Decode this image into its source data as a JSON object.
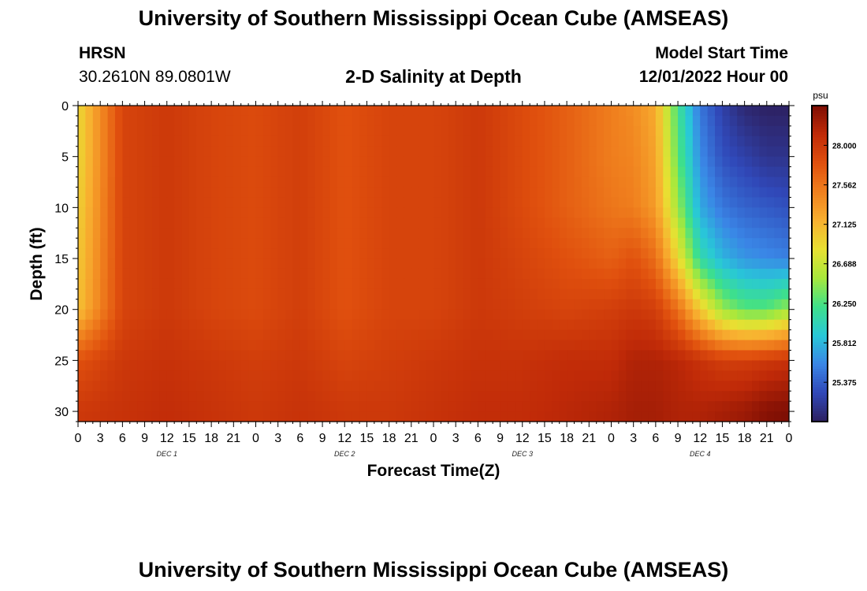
{
  "header": {
    "title": "University of Southern Mississippi Ocean Cube (AMSEAS)",
    "station": "HRSN",
    "coords": "30.2610N  89.0801W",
    "subtitle": "2-D Salinity at Depth",
    "model_start_label": "Model Start Time",
    "model_start_value": "12/01/2022 Hour 00"
  },
  "footer": {
    "title": "University of Southern Mississippi Ocean Cube (AMSEAS)"
  },
  "chart_data": {
    "type": "heatmap",
    "xlabel": "Forecast Time(Z)",
    "ylabel": "Depth (ft)",
    "x_ticks": [
      "0",
      "3",
      "6",
      "9",
      "12",
      "15",
      "18",
      "21",
      "0",
      "3",
      "6",
      "9",
      "12",
      "15",
      "18",
      "21",
      "0",
      "3",
      "6",
      "9",
      "12",
      "15",
      "18",
      "21",
      "0",
      "3",
      "6",
      "9",
      "12",
      "15",
      "18",
      "21",
      "0"
    ],
    "x_range_hours": [
      0,
      96
    ],
    "day_labels": [
      {
        "label": "DEC 1",
        "hour": 12
      },
      {
        "label": "DEC 2",
        "hour": 36
      },
      {
        "label": "DEC 3",
        "hour": 60
      },
      {
        "label": "DEC 4",
        "hour": 84
      }
    ],
    "y_ticks": [
      0,
      5,
      10,
      15,
      20,
      25,
      30
    ],
    "ylim": [
      0,
      31
    ],
    "y_inverted": true,
    "colorbar": {
      "unit": "psu",
      "ticks": [
        "28.000",
        "27.562",
        "27.125",
        "26.688",
        "26.250",
        "25.812",
        "25.375"
      ],
      "tick_values": [
        28.0,
        27.562,
        27.125,
        26.688,
        26.25,
        25.812,
        25.375
      ],
      "range": [
        24.94,
        28.44
      ],
      "colors": [
        "#2d2060",
        "#3048b8",
        "#3a86e6",
        "#28c8d8",
        "#3ee08a",
        "#a8e83c",
        "#e8e032",
        "#f8b030",
        "#f0801e",
        "#e0500e",
        "#c02a08",
        "#7e0e04"
      ]
    },
    "salinity_grid": {
      "hours": [
        0,
        6,
        12,
        18,
        24,
        30,
        36,
        42,
        48,
        54,
        60,
        66,
        72,
        75,
        78,
        81,
        84,
        87,
        90,
        93,
        96
      ],
      "depths_ft": [
        0,
        5,
        10,
        15,
        20,
        25,
        30
      ],
      "values": [
        [
          26.9,
          27.9,
          28.0,
          27.9,
          27.85,
          27.95,
          27.8,
          27.9,
          27.9,
          28.0,
          27.85,
          27.7,
          27.5,
          27.4,
          27.2,
          26.2,
          25.5,
          25.2,
          25.0,
          24.95,
          24.95
        ],
        [
          26.9,
          27.9,
          28.0,
          27.9,
          27.85,
          27.95,
          27.8,
          27.9,
          27.9,
          28.0,
          27.85,
          27.7,
          27.5,
          27.45,
          27.25,
          26.3,
          25.6,
          25.3,
          25.2,
          25.1,
          25.1
        ],
        [
          26.95,
          27.9,
          28.0,
          27.9,
          27.85,
          27.95,
          27.8,
          27.9,
          27.9,
          28.0,
          27.85,
          27.7,
          27.55,
          27.5,
          27.3,
          26.5,
          25.75,
          25.5,
          25.4,
          25.35,
          25.3
        ],
        [
          27.0,
          27.9,
          28.0,
          27.9,
          27.85,
          27.95,
          27.8,
          27.9,
          27.9,
          28.0,
          27.9,
          27.8,
          27.7,
          27.8,
          27.6,
          26.9,
          26.1,
          25.8,
          25.65,
          25.6,
          25.55
        ],
        [
          27.05,
          27.9,
          28.0,
          27.9,
          27.85,
          27.95,
          27.8,
          27.9,
          27.9,
          28.0,
          27.95,
          27.9,
          27.95,
          28.0,
          27.95,
          27.6,
          27.0,
          26.5,
          26.3,
          26.3,
          26.5
        ],
        [
          27.8,
          28.0,
          28.05,
          28.0,
          27.95,
          28.0,
          27.9,
          27.95,
          28.0,
          28.05,
          28.05,
          28.1,
          28.1,
          28.2,
          28.2,
          28.15,
          28.05,
          27.95,
          27.95,
          28.0,
          28.05
        ],
        [
          28.0,
          28.05,
          28.1,
          28.05,
          28.0,
          28.05,
          28.0,
          28.0,
          28.05,
          28.1,
          28.1,
          28.15,
          28.2,
          28.25,
          28.25,
          28.2,
          28.2,
          28.25,
          28.3,
          28.4,
          28.44
        ]
      ]
    }
  }
}
